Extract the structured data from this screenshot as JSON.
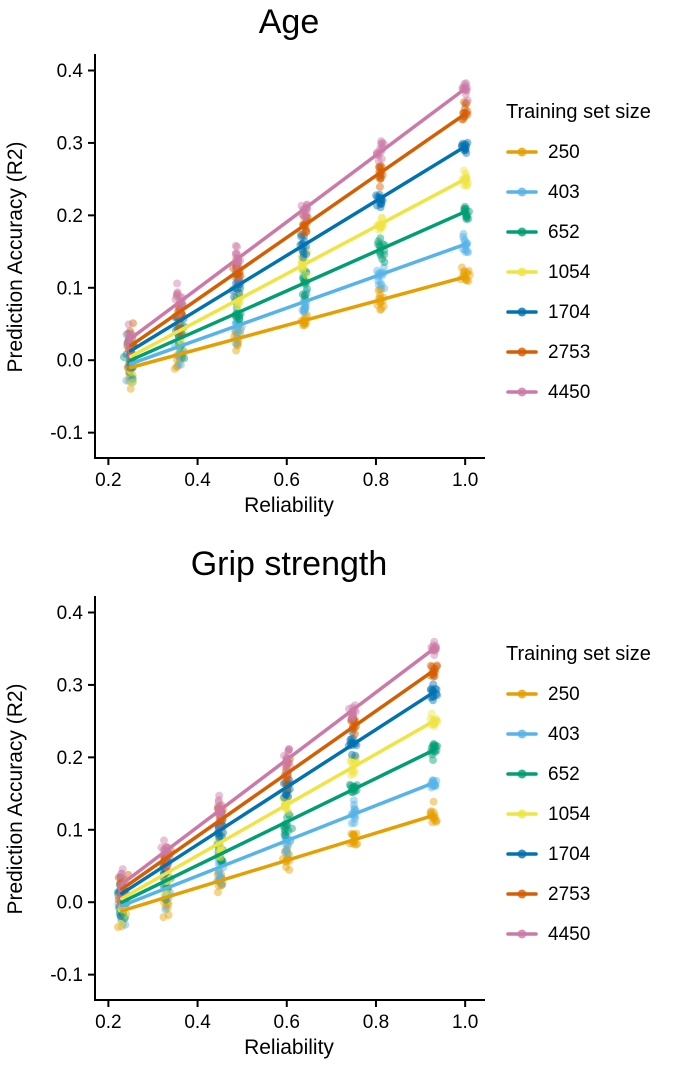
{
  "page": {
    "background": "#FFFFFF"
  },
  "chart_data": [
    {
      "type": "scatter",
      "title": "Age",
      "xlabel": "Reliability",
      "ylabel": "Prediction Accuracy (R2)",
      "xlim": [
        0.17,
        1.04
      ],
      "ylim": [
        -0.135,
        0.42
      ],
      "xticks": [
        0.2,
        0.4,
        0.6,
        0.8,
        1.0
      ],
      "yticks": [
        -0.1,
        0.0,
        0.1,
        0.2,
        0.3,
        0.4
      ],
      "grid": false,
      "legend": {
        "title": "Training set size",
        "position": "right"
      },
      "point_opacity": 0.45,
      "point_radius": 4,
      "line_width": 3.5,
      "x_clusters": [
        0.25,
        0.36,
        0.49,
        0.64,
        0.81,
        1.0
      ],
      "series": [
        {
          "name": "250",
          "color": "#E69F00",
          "cluster_means": [
            -0.01,
            0.008,
            0.03,
            0.055,
            0.083,
            0.115
          ]
        },
        {
          "name": "403",
          "color": "#56B4E9",
          "cluster_means": [
            -0.005,
            0.019,
            0.048,
            0.081,
            0.118,
            0.16
          ]
        },
        {
          "name": "652",
          "color": "#009E73",
          "cluster_means": [
            0.0,
            0.03,
            0.066,
            0.107,
            0.153,
            0.205
          ]
        },
        {
          "name": "1054",
          "color": "#F0E442",
          "cluster_means": [
            0.005,
            0.041,
            0.083,
            0.132,
            0.188,
            0.25
          ]
        },
        {
          "name": "1704",
          "color": "#0072B2",
          "cluster_means": [
            0.013,
            0.054,
            0.103,
            0.16,
            0.224,
            0.295
          ]
        },
        {
          "name": "2753",
          "color": "#D55E00",
          "cluster_means": [
            0.02,
            0.067,
            0.122,
            0.186,
            0.259,
            0.34
          ]
        },
        {
          "name": "4450",
          "color": "#CC79A7",
          "cluster_means": [
            0.03,
            0.081,
            0.14,
            0.209,
            0.288,
            0.375
          ]
        }
      ]
    },
    {
      "type": "scatter",
      "title": "Grip strength",
      "xlabel": "Reliability",
      "ylabel": "Prediction Accuracy (R2)",
      "xlim": [
        0.17,
        1.04
      ],
      "ylim": [
        -0.135,
        0.42
      ],
      "xticks": [
        0.2,
        0.4,
        0.6,
        0.8,
        1.0
      ],
      "yticks": [
        -0.1,
        0.0,
        0.1,
        0.2,
        0.3,
        0.4
      ],
      "grid": false,
      "legend": {
        "title": "Training set size",
        "position": "right"
      },
      "point_opacity": 0.45,
      "point_radius": 4,
      "line_width": 3.5,
      "x_clusters": [
        0.23,
        0.33,
        0.45,
        0.6,
        0.75,
        0.93
      ],
      "series": [
        {
          "name": "250",
          "color": "#E69F00",
          "cluster_means": [
            -0.012,
            0.007,
            0.03,
            0.058,
            0.086,
            0.12
          ]
        },
        {
          "name": "403",
          "color": "#56B4E9",
          "cluster_means": [
            -0.005,
            0.019,
            0.048,
            0.085,
            0.121,
            0.165
          ]
        },
        {
          "name": "652",
          "color": "#009E73",
          "cluster_means": [
            0.0,
            0.03,
            0.066,
            0.111,
            0.156,
            0.21
          ]
        },
        {
          "name": "1054",
          "color": "#F0E442",
          "cluster_means": [
            0.005,
            0.04,
            0.082,
            0.135,
            0.187,
            0.25
          ]
        },
        {
          "name": "1704",
          "color": "#0072B2",
          "cluster_means": [
            0.012,
            0.052,
            0.099,
            0.159,
            0.218,
            0.29
          ]
        },
        {
          "name": "2753",
          "color": "#D55E00",
          "cluster_means": [
            0.018,
            0.061,
            0.113,
            0.178,
            0.242,
            0.32
          ]
        },
        {
          "name": "4450",
          "color": "#CC79A7",
          "cluster_means": [
            0.025,
            0.071,
            0.127,
            0.197,
            0.266,
            0.35
          ]
        }
      ]
    }
  ]
}
